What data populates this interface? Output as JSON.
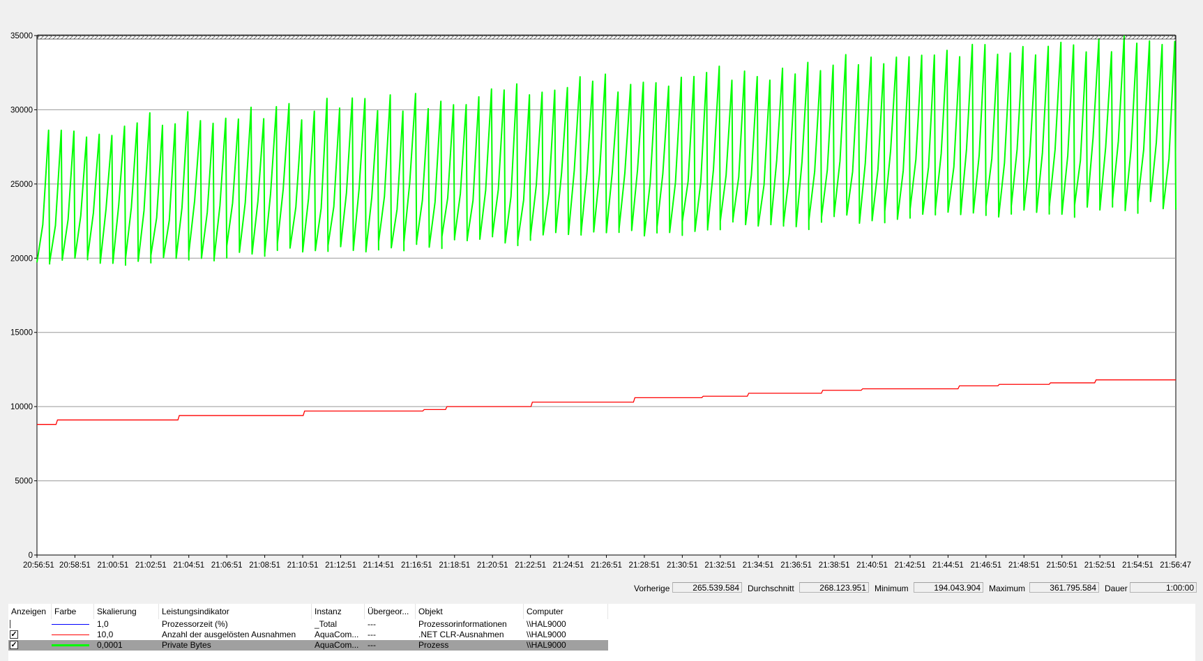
{
  "chart_data": {
    "type": "line",
    "ylim": [
      0,
      35000
    ],
    "y_ticks": [
      0,
      5000,
      10000,
      15000,
      20000,
      25000,
      30000,
      35000
    ],
    "x_ticks": [
      "20:56:51",
      "20:58:51",
      "21:00:51",
      "21:02:51",
      "21:04:51",
      "21:06:51",
      "21:08:51",
      "21:10:51",
      "21:12:51",
      "21:14:51",
      "21:16:51",
      "21:18:51",
      "21:20:51",
      "21:22:51",
      "21:24:51",
      "21:26:51",
      "21:28:51",
      "21:30:51",
      "21:32:51",
      "21:34:51",
      "21:36:51",
      "21:38:51",
      "21:40:51",
      "21:42:51",
      "21:44:51",
      "21:46:51",
      "21:48:51",
      "21:50:51",
      "21:52:51",
      "21:54:51",
      "21:56:47"
    ],
    "grid": true,
    "series": [
      {
        "color": "#00ff00",
        "cycles": 90,
        "low_start": 19700,
        "low_end": 23800,
        "high_start": 28500,
        "high_end": 35000
      },
      {
        "color": "#ff0000",
        "steps": [
          [
            0,
            8800
          ],
          [
            0.018,
            9100
          ],
          [
            0.125,
            9400
          ],
          [
            0.235,
            9700
          ],
          [
            0.34,
            9800
          ],
          [
            0.36,
            10000
          ],
          [
            0.435,
            10300
          ],
          [
            0.525,
            10600
          ],
          [
            0.585,
            10700
          ],
          [
            0.625,
            10900
          ],
          [
            0.69,
            11100
          ],
          [
            0.725,
            11200
          ],
          [
            0.81,
            11400
          ],
          [
            0.845,
            11500
          ],
          [
            0.89,
            11600
          ],
          [
            0.93,
            11800
          ],
          [
            1,
            11800
          ]
        ]
      }
    ]
  },
  "stats": {
    "previous_label": "Vorherige",
    "previous_value": "265.539.584",
    "average_label": "Durchschnitt",
    "average_value": "268.123.951",
    "minimum_label": "Minimum",
    "minimum_value": "194.043.904",
    "maximum_label": "Maximum",
    "maximum_value": "361.795.584",
    "duration_label": "Dauer",
    "duration_value": "1:00:00"
  },
  "table": {
    "headers": [
      "Anzeigen",
      "Farbe",
      "Skalierung",
      "Leistungsindikator",
      "Instanz",
      "Übergeor...",
      "Objekt",
      "Computer"
    ],
    "rows": [
      {
        "checked": false,
        "color": "#0000ff",
        "scale": "1,0",
        "counter": "Prozessorzeit (%)",
        "instance": "_Total",
        "parent": "---",
        "object": "Prozessorinformationen",
        "computer": "\\\\HAL9000",
        "selected": false
      },
      {
        "checked": true,
        "color": "#ff0000",
        "scale": "10,0",
        "counter": "Anzahl der ausgelösten Ausnahmen",
        "instance": "AquaCom...",
        "parent": "---",
        "object": ".NET CLR-Ausnahmen",
        "computer": "\\\\HAL9000",
        "selected": false
      },
      {
        "checked": true,
        "color": "#00ff00",
        "scale": "0,0001",
        "counter": "Private Bytes",
        "instance": "AquaCom...",
        "parent": "---",
        "object": "Prozess",
        "computer": "\\\\HAL9000",
        "selected": true
      }
    ]
  }
}
